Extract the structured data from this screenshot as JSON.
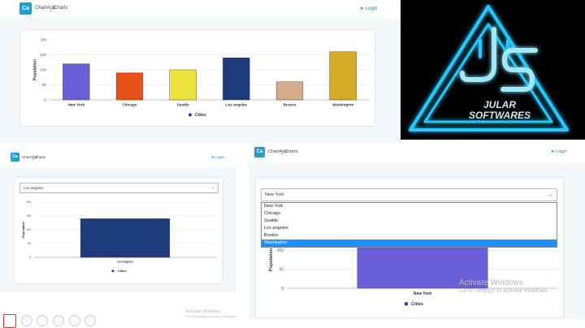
{
  "colors": {
    "brand": "#1a9fd9",
    "login": "#1a7fd4",
    "bar_ny": "#6b5fd9",
    "select_highlight": "#1e90ff",
    "logo_glow": "#22c8ff"
  },
  "app": {
    "brand_abbr": "Ca",
    "app_name": "ChartApp",
    "nav_charts": "Charts",
    "login": "Login"
  },
  "chart_main": {
    "type": "bar",
    "categories": [
      "New York",
      "Chicago",
      "Seattle",
      "Los angeles",
      "Boston",
      "Washington"
    ],
    "values": [
      120,
      90,
      100,
      140,
      60,
      160
    ],
    "colors": [
      "#6b5fd9",
      "#e8501a",
      "#eee33e",
      "#1b3b7a",
      "#d4ac8a",
      "#d4aa26"
    ],
    "ylabel": "Population",
    "yticks": [
      0,
      50,
      100,
      150,
      200
    ],
    "ylim": [
      0,
      200
    ],
    "legend": "Cities"
  },
  "chart_la": {
    "type": "bar",
    "selected": "Los angeles",
    "categories": [
      "Los angeles"
    ],
    "values": [
      140
    ],
    "colors": [
      "#1b3b7a"
    ],
    "ylabel": "Population",
    "yticks": [
      0,
      50,
      100,
      150,
      200
    ],
    "ylim": [
      0,
      200
    ],
    "legend": "Cities"
  },
  "chart_ny": {
    "type": "bar",
    "selected": "New York",
    "options": [
      "New York",
      "Chicago",
      "Seattle",
      "Los angeles",
      "Boston",
      "Washington"
    ],
    "highlighted": "Washington",
    "categories": [
      "New York"
    ],
    "values": [
      120
    ],
    "colors": [
      "#6b5fd9"
    ],
    "ylabel": "Population",
    "yticks": [
      0,
      50,
      100
    ],
    "ylim": [
      0,
      150
    ],
    "legend": "Cities"
  },
  "chart_data": [
    {
      "type": "bar",
      "categories": [
        "New York",
        "Chicago",
        "Seattle",
        "Los angeles",
        "Boston",
        "Washington"
      ],
      "values": [
        120,
        90,
        100,
        140,
        60,
        160
      ],
      "ylabel": "Population",
      "ylim": [
        0,
        200
      ],
      "legend": "Cities",
      "legend_position": "bottom"
    },
    {
      "type": "bar",
      "categories": [
        "Los angeles"
      ],
      "values": [
        140
      ],
      "ylabel": "Population",
      "ylim": [
        0,
        200
      ],
      "legend": "Cities",
      "legend_position": "bottom"
    },
    {
      "type": "bar",
      "categories": [
        "New York"
      ],
      "values": [
        120
      ],
      "ylabel": "Population",
      "ylim": [
        0,
        150
      ],
      "legend": "Cities",
      "legend_position": "bottom"
    }
  ],
  "logo": {
    "text_line1": "JULAR",
    "text_line2": "SOFTWARES"
  },
  "watermark": {
    "line1": "Activate Windows",
    "line2": "Go to Settings to activate Windows.",
    "small_line1": "Activate Windows",
    "small_line2": "Go to Settings to activate Windows."
  }
}
